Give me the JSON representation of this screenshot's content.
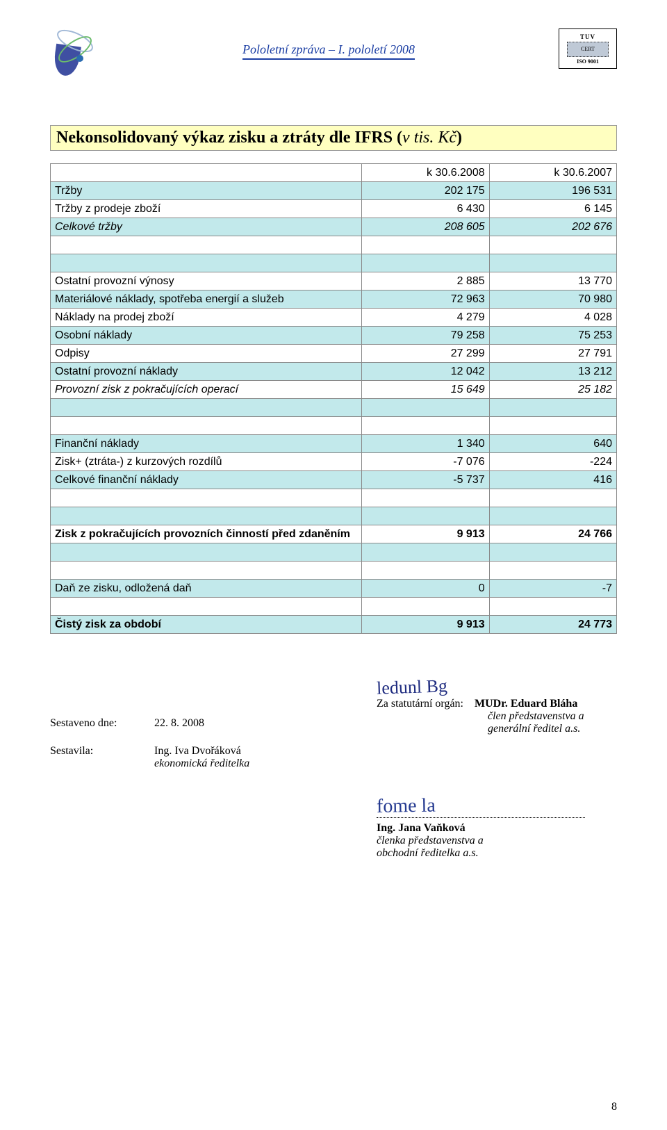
{
  "header": {
    "center_text": "Pololetní zpráva – I. pololetí 2008",
    "tuv_top": "TUV",
    "tuv_mid": "CERT",
    "tuv_bottom": "ISO 9001"
  },
  "title": {
    "main": "Nekonsolidovaný výkaz zisku a ztráty dle IFRS (",
    "italic": "v tis. Kč",
    "close": ")"
  },
  "table": {
    "colA_width": "55%",
    "colB_width": "22.5%",
    "colC_width": "22.5%",
    "header_row_bg": "#ffffff",
    "blue_bg": "#c2e9eb",
    "white_bg": "#ffffff",
    "border_color": "#888888",
    "rows": [
      {
        "cls": "row-white",
        "style": "",
        "label": "",
        "v1": "k 30.6.2008",
        "v2": "k 30.6.2007"
      },
      {
        "cls": "row-blue",
        "style": "",
        "label": "Tržby",
        "v1": "202 175",
        "v2": "196 531"
      },
      {
        "cls": "row-white",
        "style": "",
        "label": "Tržby z prodeje zboží",
        "v1": "6 430",
        "v2": "6 145"
      },
      {
        "cls": "row-blue",
        "style": "italic",
        "label": "Celkové tržby",
        "v1": "208 605",
        "v2": "202 676"
      },
      {
        "cls": "row-white",
        "style": "",
        "label": "",
        "v1": "",
        "v2": ""
      },
      {
        "cls": "row-blue",
        "style": "",
        "label": "",
        "v1": "",
        "v2": ""
      },
      {
        "cls": "row-white",
        "style": "",
        "label": "Ostatní provozní výnosy",
        "v1": "2 885",
        "v2": "13 770"
      },
      {
        "cls": "row-blue",
        "style": "",
        "label": "Materiálové náklady, spotřeba energií a služeb",
        "v1": "72 963",
        "v2": "70 980"
      },
      {
        "cls": "row-white",
        "style": "",
        "label": "Náklady na prodej zboží",
        "v1": "4 279",
        "v2": "4 028"
      },
      {
        "cls": "row-blue",
        "style": "",
        "label": "Osobní náklady",
        "v1": "79 258",
        "v2": "75 253"
      },
      {
        "cls": "row-white",
        "style": "",
        "label": "Odpisy",
        "v1": "27 299",
        "v2": "27 791"
      },
      {
        "cls": "row-blue",
        "style": "",
        "label": "Ostatní provozní náklady",
        "v1": "12 042",
        "v2": "13 212"
      },
      {
        "cls": "row-white",
        "style": "italic",
        "label": "Provozní zisk z pokračujících operací",
        "v1": "15 649",
        "v2": "25 182"
      },
      {
        "cls": "row-blue",
        "style": "",
        "label": "",
        "v1": "",
        "v2": ""
      },
      {
        "cls": "row-white",
        "style": "",
        "label": "",
        "v1": "",
        "v2": ""
      },
      {
        "cls": "row-blue",
        "style": "",
        "label": "Finanční náklady",
        "v1": "1 340",
        "v2": "640"
      },
      {
        "cls": "row-white",
        "style": "",
        "label": "Zisk+ (ztráta-) z kurzových rozdílů",
        "v1": "-7 076",
        "v2": "-224"
      },
      {
        "cls": "row-blue",
        "style": "",
        "label": "Celkové finanční náklady",
        "v1": "-5 737",
        "v2": "416"
      },
      {
        "cls": "row-white",
        "style": "",
        "label": "",
        "v1": "",
        "v2": ""
      },
      {
        "cls": "row-blue",
        "style": "",
        "label": "",
        "v1": "",
        "v2": ""
      },
      {
        "cls": "row-white",
        "style": "bold",
        "label": "Zisk z pokračujících provozních činností před zdaněním",
        "v1": "9 913",
        "v2": "24 766"
      },
      {
        "cls": "row-blue",
        "style": "",
        "label": "",
        "v1": "",
        "v2": ""
      },
      {
        "cls": "row-white",
        "style": "",
        "label": "",
        "v1": "",
        "v2": ""
      },
      {
        "cls": "row-blue",
        "style": "",
        "label": "Daň ze zisku, odložená daň",
        "v1": "0",
        "v2": "-7"
      },
      {
        "cls": "row-white",
        "style": "",
        "label": "",
        "v1": "",
        "v2": ""
      },
      {
        "cls": "row-blue",
        "style": "bold",
        "label": "Čistý zisk za období",
        "v1": "9 913",
        "v2": "24 773"
      }
    ]
  },
  "footer": {
    "compiled_label": "Sestaveno dne:",
    "compiled_date": "22. 8. 2008",
    "compiled_by_label": "Sestavila:",
    "compiled_by_name": "Ing. Iva Dvořáková",
    "compiled_by_title": "ekonomická ředitelka",
    "statutory_label": "Za statutární orgán:",
    "sig1_scrawl": "ledunl Bg",
    "sig1_name": "MUDr. Eduard Bláha",
    "sig1_title1": "člen představenstva a",
    "sig1_title2": "generální ředitel a.s.",
    "sig2_scrawl": "fome la",
    "sig2_name": "Ing. Jana Vaňková",
    "sig2_title1": "členka představenstva a",
    "sig2_title2": "obchodní ředitelka a.s."
  },
  "page_number": "8"
}
